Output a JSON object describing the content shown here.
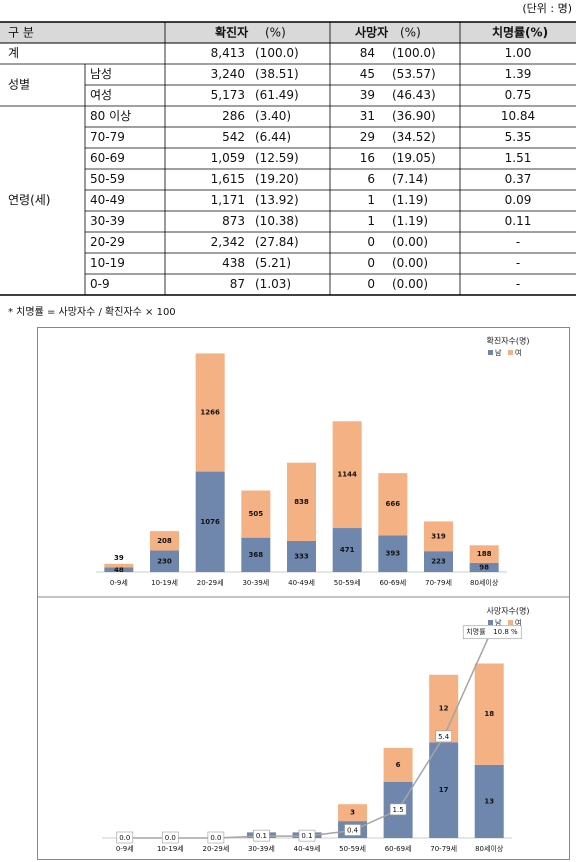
{
  "unit_note": "(단위 : 명)",
  "table": {
    "header": [
      "구 분",
      "확진자",
      "(%)",
      "사망자",
      "(%)",
      "치명률(%)"
    ],
    "groups": [
      {
        "label": "계",
        "rows": [
          {
            "cells": [
              "8,413",
              "(100.0)",
              "84",
              "(100.0)",
              "1.00"
            ]
          }
        ]
      },
      {
        "label": "성별",
        "rows": [
          {
            "label": "남성",
            "cells": [
              "3,240",
              "(38.51)",
              "45",
              "(53.57)",
              "1.39"
            ]
          },
          {
            "label": "여성",
            "cells": [
              "5,173",
              "(61.49)",
              "39",
              "(46.43)",
              "0.75"
            ]
          }
        ]
      },
      {
        "label": "연령(세)",
        "rows": [
          {
            "label": "80 이상",
            "cells": [
              "286",
              "(3.40)",
              "31",
              "(36.90)",
              "10.84"
            ]
          },
          {
            "label": "70-79",
            "cells": [
              "542",
              "(6.44)",
              "29",
              "(34.52)",
              "5.35"
            ]
          },
          {
            "label": "60-69",
            "cells": [
              "1,059",
              "(12.59)",
              "16",
              "(19.05)",
              "1.51"
            ]
          },
          {
            "label": "50-59",
            "cells": [
              "1,615",
              "(19.20)",
              "6",
              "(7.14)",
              "0.37"
            ]
          },
          {
            "label": "40-49",
            "cells": [
              "1,171",
              "(13.92)",
              "1",
              "(1.19)",
              "0.09"
            ]
          },
          {
            "label": "30-39",
            "cells": [
              "873",
              "(10.38)",
              "1",
              "(1.19)",
              "0.11"
            ]
          },
          {
            "label": "20-29",
            "cells": [
              "2,342",
              "(27.84)",
              "0",
              "(0.00)",
              "-"
            ]
          },
          {
            "label": "10-19",
            "cells": [
              "438",
              "(5.21)",
              "0",
              "(0.00)",
              "-"
            ]
          },
          {
            "label": "0-9",
            "cells": [
              "87",
              "(1.03)",
              "0",
              "(0.00)",
              "-"
            ]
          }
        ]
      }
    ]
  },
  "footnote": "* 치명률 = 사망자수 / 확진자수 × 100",
  "chart_data": [
    {
      "type": "bar",
      "stacked": true,
      "legend_title": "확진자수(명)",
      "ylim": [
        0,
        2400
      ],
      "categories": [
        "0-9세",
        "10-19세",
        "20-29세",
        "30-39세",
        "40-49세",
        "50-59세",
        "60-69세",
        "70-79세",
        "80세이상"
      ],
      "series": [
        {
          "name": "남",
          "color": "#7087ad",
          "values": [
            48,
            230,
            1076,
            368,
            333,
            471,
            393,
            223,
            98
          ]
        },
        {
          "name": "여",
          "color": "#f4b183",
          "values": [
            39,
            208,
            1266,
            505,
            838,
            1144,
            666,
            319,
            188
          ]
        }
      ]
    },
    {
      "type": "bar",
      "stacked": true,
      "legend_title": "사망자수(명)",
      "ylim": [
        0,
        35
      ],
      "y2lim": [
        0,
        11
      ],
      "categories": [
        "0-9세",
        "10-19세",
        "20-29세",
        "30-39세",
        "40-49세",
        "50-59세",
        "60-69세",
        "70-79세",
        "80세이상"
      ],
      "series": [
        {
          "name": "남",
          "color": "#7087ad",
          "values": [
            0,
            0,
            0,
            1,
            1,
            3,
            10,
            17,
            13
          ]
        },
        {
          "name": "여",
          "color": "#f4b183",
          "values": [
            0,
            0,
            0,
            0,
            0,
            3,
            6,
            12,
            18
          ]
        },
        {
          "name": "치명률",
          "type": "line",
          "axis": "y2",
          "color": "#a5a5a5",
          "values": [
            0.0,
            0.0,
            0.0,
            0.1,
            0.1,
            0.4,
            1.5,
            5.4,
            10.8
          ],
          "value_labels": [
            "0.0",
            "0.0",
            "0.0",
            "0.1",
            "0.1",
            "0.4",
            "1.5",
            "5.4",
            "10.8 %"
          ]
        }
      ]
    }
  ]
}
